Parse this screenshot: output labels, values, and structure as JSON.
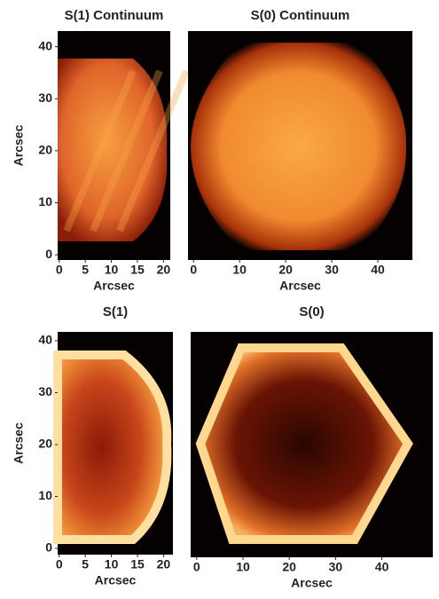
{
  "chart_data": [
    {
      "type": "heatmap",
      "title": "S(1) Continuum",
      "xlabel": "Arcsec",
      "ylabel": "Arcsec",
      "xlim": [
        -0.3,
        21.3
      ],
      "ylim": [
        -1,
        43
      ],
      "xticks": [
        0,
        5,
        10,
        15,
        20
      ],
      "yticks": [
        0,
        10,
        20,
        30,
        40
      ]
    },
    {
      "type": "heatmap",
      "title": "S(0) Continuum",
      "xlabel": "Arcsec",
      "xlim": [
        -1.2,
        47.5
      ],
      "ylim": [
        -1,
        43
      ],
      "xticks": [
        0,
        10,
        20,
        30,
        40
      ]
    },
    {
      "type": "heatmap",
      "title": "S(1)",
      "xlabel": "Arcsec",
      "ylabel": "Arcsec",
      "xlim": [
        -0.3,
        21.8
      ],
      "ylim": [
        -1.2,
        41.7
      ],
      "xticks": [
        0,
        5,
        10,
        15,
        20
      ],
      "yticks": [
        0,
        10,
        20,
        30,
        40
      ]
    },
    {
      "type": "heatmap",
      "title": "S(0)",
      "xlabel": "Arcsec",
      "xlim": [
        -1.3,
        51
      ],
      "ylim": [
        -1.2,
        41.7
      ],
      "xticks": [
        0,
        10,
        20,
        30,
        40
      ]
    }
  ]
}
